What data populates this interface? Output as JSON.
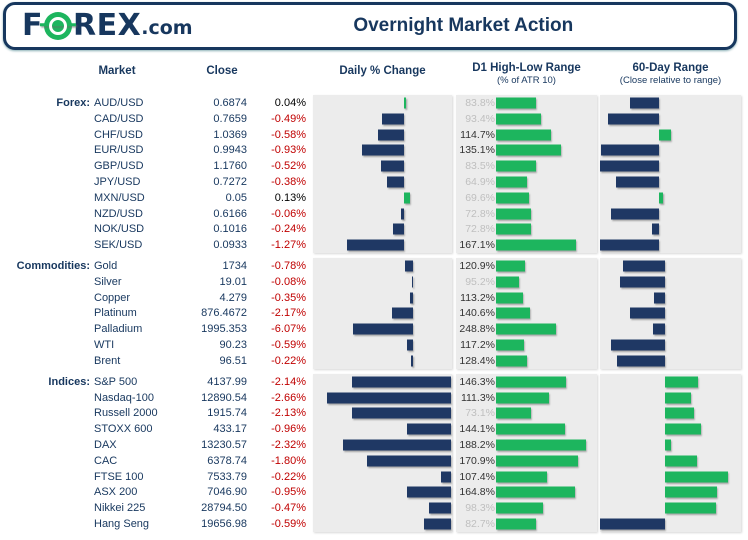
{
  "header": {
    "title": "Overnight Market Action",
    "logo": {
      "f": "F",
      "rex": "REX",
      "com": ".com"
    }
  },
  "columns": {
    "market": "Market",
    "close": "Close",
    "daily": "Daily % Change",
    "d1": "D1 High-Low Range",
    "d1_sub": "(% of ATR 10)",
    "r60": "60-Day Range",
    "r60_sub": "(Close relative to range)"
  },
  "colors": {
    "navy": "#1f3864",
    "green": "#1db55e",
    "red": "#c00000",
    "gray_label": "#bfbfbf",
    "panel_bg": "#ececec"
  },
  "sections": [
    {
      "id": "forex",
      "label": "Forex:",
      "daily_axis_pct": 65.5,
      "daily_scale": 32.3,
      "d1_left_pct": 28.4,
      "d1_scale": 0.34,
      "r60_axis_pct": 42.0,
      "rows": [
        {
          "market": "AUD/USD",
          "close": "0.6874",
          "chg": 0.04,
          "chg_str": "0.04%",
          "atr": 83.8,
          "atr_str": "83.8%",
          "r60": -21
        },
        {
          "market": "CAD/USD",
          "close": "0.7659",
          "chg": -0.49,
          "chg_str": "-0.49%",
          "atr": 93.4,
          "atr_str": "93.4%",
          "r60": -36
        },
        {
          "market": "CHF/USD",
          "close": "1.0369",
          "chg": -0.58,
          "chg_str": "-0.58%",
          "atr": 114.7,
          "atr_str": "114.7%",
          "r60": 8.5
        },
        {
          "market": "EUR/USD",
          "close": "0.9943",
          "chg": -0.93,
          "chg_str": "-0.93%",
          "atr": 135.1,
          "atr_str": "135.1%",
          "r60": -41
        },
        {
          "market": "GBP/USD",
          "close": "1.1760",
          "chg": -0.52,
          "chg_str": "-0.52%",
          "atr": 83.5,
          "atr_str": "83.5%",
          "r60": -42
        },
        {
          "market": "JPY/USD",
          "close": "0.7272",
          "chg": -0.38,
          "chg_str": "-0.38%",
          "atr": 64.9,
          "atr_str": "64.9%",
          "r60": -31
        },
        {
          "market": "MXN/USD",
          "close": "0.05",
          "chg": 0.13,
          "chg_str": "0.13%",
          "atr": 69.6,
          "atr_str": "69.6%",
          "r60": 3
        },
        {
          "market": "NZD/USD",
          "close": "0.6166",
          "chg": -0.06,
          "chg_str": "-0.06%",
          "atr": 72.8,
          "atr_str": "72.8%",
          "r60": -34
        },
        {
          "market": "NOK/USD",
          "close": "0.1016",
          "chg": -0.24,
          "chg_str": "-0.24%",
          "atr": 72.8,
          "atr_str": "72.8%",
          "r60": -5
        },
        {
          "market": "SEK/USD",
          "close": "0.0933",
          "chg": -1.27,
          "chg_str": "-1.27%",
          "atr": 167.1,
          "atr_str": "167.1%",
          "r60": -42
        }
      ]
    },
    {
      "id": "commodities",
      "label": "Commodities:",
      "daily_axis_pct": 72.0,
      "daily_scale": 7.1,
      "d1_left_pct": 28.4,
      "d1_scale": 0.171,
      "r60_axis_pct": 46.0,
      "rows": [
        {
          "market": "Gold",
          "close": "1734",
          "chg": -0.78,
          "chg_str": "-0.78%",
          "atr": 120.9,
          "atr_str": "120.9%",
          "r60": -30
        },
        {
          "market": "Silver",
          "close": "19.01",
          "chg": -0.08,
          "chg_str": "-0.08%",
          "atr": 95.2,
          "atr_str": "95.2%",
          "r60": -32
        },
        {
          "market": "Copper",
          "close": "4.279",
          "chg": -0.35,
          "chg_str": "-0.35%",
          "atr": 113.2,
          "atr_str": "113.2%",
          "r60": -8
        },
        {
          "market": "Platinum",
          "close": "876.4672",
          "chg": -2.17,
          "chg_str": "-2.17%",
          "atr": 140.6,
          "atr_str": "140.6%",
          "r60": -25
        },
        {
          "market": "Palladium",
          "close": "1995.353",
          "chg": -6.07,
          "chg_str": "-6.07%",
          "atr": 248.8,
          "atr_str": "248.8%",
          "r60": -8.5
        },
        {
          "market": "WTI",
          "close": "90.23",
          "chg": -0.59,
          "chg_str": "-0.59%",
          "atr": 117.2,
          "atr_str": "117.2%",
          "r60": -38
        },
        {
          "market": "Brent",
          "close": "96.51",
          "chg": -0.22,
          "chg_str": "-0.22%",
          "atr": 128.4,
          "atr_str": "128.4%",
          "r60": -34
        }
      ]
    },
    {
      "id": "indices",
      "label": "Indices:",
      "daily_axis_pct": 99.5,
      "daily_scale": 33.5,
      "d1_left_pct": 28.4,
      "d1_scale": 0.339,
      "r60_axis_pct": 46.0,
      "rows": [
        {
          "market": "S&P 500",
          "close": "4137.99",
          "chg": -2.14,
          "chg_str": "-2.14%",
          "atr": 146.3,
          "atr_str": "146.3%",
          "r60": 23.4
        },
        {
          "market": "Nasdaq-100",
          "close": "12890.54",
          "chg": -2.66,
          "chg_str": "-2.66%",
          "atr": 111.3,
          "atr_str": "111.3%",
          "r60": 18.4
        },
        {
          "market": "Russell 2000",
          "close": "1915.74",
          "chg": -2.13,
          "chg_str": "-2.13%",
          "atr": 73.1,
          "atr_str": "73.1%",
          "r60": 20.6
        },
        {
          "market": "STOXX 600",
          "close": "433.17",
          "chg": -0.96,
          "chg_str": "-0.96%",
          "atr": 144.1,
          "atr_str": "144.1%",
          "r60": 25.5
        },
        {
          "market": "DAX",
          "close": "13230.57",
          "chg": -2.32,
          "chg_str": "-2.32%",
          "atr": 188.2,
          "atr_str": "188.2%",
          "r60": 4.3
        },
        {
          "market": "CAC",
          "close": "6378.74",
          "chg": -1.8,
          "chg_str": "-1.80%",
          "atr": 170.9,
          "atr_str": "170.9%",
          "r60": 22.7
        },
        {
          "market": "FTSE 100",
          "close": "7533.79",
          "chg": -0.22,
          "chg_str": "-0.22%",
          "atr": 107.4,
          "atr_str": "107.4%",
          "r60": 44.7
        },
        {
          "market": "ASX 200",
          "close": "7046.90",
          "chg": -0.95,
          "chg_str": "-0.95%",
          "atr": 164.8,
          "atr_str": "164.8%",
          "r60": 36.9
        },
        {
          "market": "Nikkei 225",
          "close": "28794.50",
          "chg": -0.47,
          "chg_str": "-0.47%",
          "atr": 98.3,
          "atr_str": "98.3%",
          "r60": 36.2
        },
        {
          "market": "Hang Seng",
          "close": "19656.98",
          "chg": -0.59,
          "chg_str": "-0.59%",
          "atr": 82.7,
          "atr_str": "82.7%",
          "r60": -46
        }
      ]
    }
  ],
  "chart_data": [
    {
      "type": "bar",
      "title": "Daily % Change",
      "orientation": "horizontal",
      "categories": [
        "AUD/USD",
        "CAD/USD",
        "CHF/USD",
        "EUR/USD",
        "GBP/USD",
        "JPY/USD",
        "MXN/USD",
        "NZD/USD",
        "NOK/USD",
        "SEK/USD",
        "Gold",
        "Silver",
        "Copper",
        "Platinum",
        "Palladium",
        "WTI",
        "Brent",
        "S&P 500",
        "Nasdaq-100",
        "Russell 2000",
        "STOXX 600",
        "DAX",
        "CAC",
        "FTSE 100",
        "ASX 200",
        "Nikkei 225",
        "Hang Seng"
      ],
      "values": [
        0.04,
        -0.49,
        -0.58,
        -0.93,
        -0.52,
        -0.38,
        0.13,
        -0.06,
        -0.24,
        -1.27,
        -0.78,
        -0.08,
        -0.35,
        -2.17,
        -6.07,
        -0.59,
        -0.22,
        -2.14,
        -2.66,
        -2.13,
        -0.96,
        -2.32,
        -1.8,
        -0.22,
        -0.95,
        -0.47,
        -0.59
      ],
      "unit": "%",
      "positive_color": "#1db55e",
      "negative_color": "#1f3864",
      "grid": false,
      "legend": false
    },
    {
      "type": "bar",
      "title": "D1 High-Low Range (% of ATR 10)",
      "orientation": "horizontal",
      "categories": [
        "AUD/USD",
        "CAD/USD",
        "CHF/USD",
        "EUR/USD",
        "GBP/USD",
        "JPY/USD",
        "MXN/USD",
        "NZD/USD",
        "NOK/USD",
        "SEK/USD",
        "Gold",
        "Silver",
        "Copper",
        "Platinum",
        "Palladium",
        "WTI",
        "Brent",
        "S&P 500",
        "Nasdaq-100",
        "Russell 2000",
        "STOXX 600",
        "DAX",
        "CAC",
        "FTSE 100",
        "ASX 200",
        "Nikkei 225",
        "Hang Seng"
      ],
      "values": [
        83.8,
        93.4,
        114.7,
        135.1,
        83.5,
        64.9,
        69.6,
        72.8,
        72.8,
        167.1,
        120.9,
        95.2,
        113.2,
        140.6,
        248.8,
        117.2,
        128.4,
        146.3,
        111.3,
        73.1,
        144.1,
        188.2,
        170.9,
        107.4,
        164.8,
        98.3,
        82.7
      ],
      "unit": "%",
      "bar_color": "#1db55e",
      "label_style": "gray if below 100%, dark if 100% or above",
      "grid": false,
      "legend": false
    },
    {
      "type": "bar",
      "title": "60-Day Range (Close relative to range)",
      "orientation": "horizontal",
      "categories": [
        "AUD/USD",
        "CAD/USD",
        "CHF/USD",
        "EUR/USD",
        "GBP/USD",
        "JPY/USD",
        "MXN/USD",
        "NZD/USD",
        "NOK/USD",
        "SEK/USD",
        "Gold",
        "Silver",
        "Copper",
        "Platinum",
        "Palladium",
        "WTI",
        "Brent",
        "S&P 500",
        "Nasdaq-100",
        "Russell 2000",
        "STOXX 600",
        "DAX",
        "CAC",
        "FTSE 100",
        "ASX 200",
        "Nikkei 225",
        "Hang Seng"
      ],
      "values": [
        -21,
        -36,
        8.5,
        -41,
        -42,
        -31,
        3,
        -34,
        -5,
        -42,
        -30,
        -32,
        -8,
        -25,
        -8.5,
        -38,
        -34,
        23.4,
        18.4,
        20.6,
        25.5,
        4.3,
        22.7,
        44.7,
        36.9,
        36.2,
        -46
      ],
      "note": "signed bar extent read from pixels (% of panel width); negative bars (navy) = close near bottom of 60-day range, positive bars (green) = close near top",
      "positive_color": "#1db55e",
      "negative_color": "#1f3864",
      "grid": false,
      "legend": false
    }
  ]
}
